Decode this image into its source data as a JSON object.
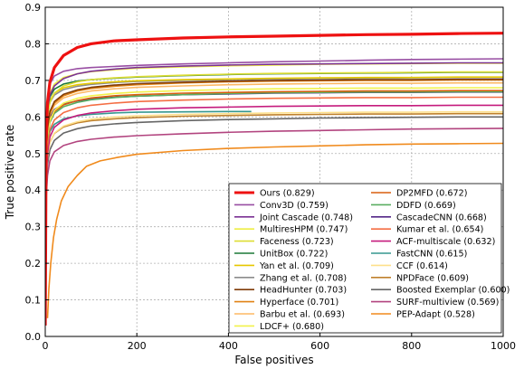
{
  "chart_data": {
    "type": "line",
    "title": "",
    "xlabel": "False positives",
    "ylabel": "True positive rate",
    "xlim": [
      0,
      1000
    ],
    "ylim": [
      0.0,
      0.9
    ],
    "xticks": [
      0,
      200,
      400,
      600,
      800,
      1000
    ],
    "yticks": [
      0.0,
      0.1,
      0.2,
      0.3,
      0.4,
      0.5,
      0.6,
      0.7,
      0.8,
      0.9
    ],
    "grid": true,
    "legend_position": "bottom-right",
    "series": [
      {
        "name": "Ours (0.829)",
        "color": "#ee1111",
        "width": 3.2,
        "x": [
          0,
          2,
          5,
          10,
          20,
          40,
          70,
          100,
          150,
          200,
          300,
          400,
          500,
          600,
          700,
          800,
          900,
          1000
        ],
        "y": [
          0.03,
          0.53,
          0.64,
          0.695,
          0.735,
          0.768,
          0.79,
          0.8,
          0.808,
          0.811,
          0.816,
          0.819,
          0.821,
          0.823,
          0.825,
          0.826,
          0.828,
          0.829
        ]
      },
      {
        "name": "Conv3D (0.759)",
        "color": "#984ea3",
        "width": 1.6,
        "x": [
          0,
          2,
          5,
          10,
          20,
          40,
          70,
          100,
          150,
          200,
          300,
          400,
          500,
          600,
          700,
          800,
          900,
          1000
        ],
        "y": [
          0.03,
          0.58,
          0.65,
          0.69,
          0.712,
          0.725,
          0.732,
          0.735,
          0.738,
          0.741,
          0.745,
          0.748,
          0.751,
          0.753,
          0.755,
          0.757,
          0.758,
          0.759
        ]
      },
      {
        "name": "Joint Cascade (0.748)",
        "color": "#7b3294",
        "width": 1.6,
        "x": [
          0,
          2,
          5,
          10,
          20,
          40,
          70,
          100,
          150,
          200,
          300,
          400,
          500,
          600,
          700,
          800,
          900,
          1000
        ],
        "y": [
          0.03,
          0.55,
          0.62,
          0.66,
          0.685,
          0.705,
          0.718,
          0.725,
          0.731,
          0.735,
          0.739,
          0.742,
          0.744,
          0.745,
          0.746,
          0.747,
          0.748,
          0.748
        ]
      },
      {
        "name": "MultiresHPM (0.747)",
        "color": "#eeee44",
        "width": 1.6,
        "x": [
          0,
          2,
          5,
          10,
          20,
          40,
          70,
          100,
          150,
          200,
          300,
          400,
          500,
          600,
          700,
          800,
          900,
          1000
        ],
        "y": [
          0.03,
          0.55,
          0.62,
          0.665,
          0.69,
          0.708,
          0.718,
          0.724,
          0.729,
          0.733,
          0.737,
          0.74,
          0.742,
          0.744,
          0.745,
          0.746,
          0.747,
          0.747
        ]
      },
      {
        "name": "Faceness (0.723)",
        "color": "#dddd33",
        "width": 1.6,
        "x": [
          0,
          2,
          5,
          10,
          20,
          40,
          70,
          100,
          150,
          200,
          300,
          400,
          500,
          600,
          700,
          800,
          900,
          1000
        ],
        "y": [
          0.03,
          0.53,
          0.6,
          0.64,
          0.665,
          0.685,
          0.696,
          0.702,
          0.707,
          0.71,
          0.714,
          0.717,
          0.719,
          0.72,
          0.721,
          0.722,
          0.723,
          0.723
        ]
      },
      {
        "name": "UnitBox (0.722)",
        "color": "#1b7837",
        "width": 1.6,
        "x": [
          0,
          2,
          5,
          10,
          20,
          40,
          70,
          100,
          150,
          200,
          300,
          400,
          500,
          600,
          700,
          800,
          900,
          1000
        ],
        "y": [
          0.03,
          0.56,
          0.62,
          0.655,
          0.676,
          0.69,
          0.698,
          0.702,
          0.706,
          0.709,
          0.713,
          0.716,
          0.718,
          0.719,
          0.72,
          0.721,
          0.722,
          0.722
        ]
      },
      {
        "name": "Yan et al. (0.709)",
        "color": "#e6c800",
        "width": 1.6,
        "x": [
          0,
          2,
          5,
          10,
          20,
          40,
          70,
          100,
          150,
          200,
          300,
          400,
          500,
          600,
          700,
          800,
          900,
          1000
        ],
        "y": [
          0.03,
          0.55,
          0.61,
          0.645,
          0.665,
          0.68,
          0.688,
          0.692,
          0.696,
          0.699,
          0.702,
          0.704,
          0.706,
          0.707,
          0.708,
          0.708,
          0.709,
          0.709
        ]
      },
      {
        "name": "Zhang et al. (0.708)",
        "color": "#8c8c8c",
        "width": 1.6,
        "x": [
          0,
          2,
          5,
          10,
          20,
          40,
          70,
          100,
          150,
          200,
          300,
          400,
          500,
          600,
          700,
          800,
          900,
          1000
        ],
        "y": [
          0.03,
          0.54,
          0.6,
          0.64,
          0.66,
          0.675,
          0.684,
          0.689,
          0.694,
          0.697,
          0.7,
          0.702,
          0.704,
          0.705,
          0.706,
          0.707,
          0.708,
          0.708
        ]
      },
      {
        "name": "HeadHunter (0.703)",
        "color": "#7f3b08",
        "width": 1.6,
        "x": [
          0,
          2,
          5,
          10,
          20,
          40,
          70,
          100,
          150,
          200,
          300,
          400,
          500,
          600,
          700,
          800,
          900,
          1000
        ],
        "y": [
          0.03,
          0.5,
          0.57,
          0.615,
          0.642,
          0.662,
          0.674,
          0.681,
          0.687,
          0.691,
          0.695,
          0.698,
          0.7,
          0.701,
          0.702,
          0.702,
          0.703,
          0.703
        ]
      },
      {
        "name": "Hyperface (0.701)",
        "color": "#e08214",
        "width": 1.6,
        "x": [
          0,
          2,
          5,
          10,
          20,
          40,
          70,
          100,
          150,
          200,
          300,
          400,
          500,
          600,
          700,
          800,
          900,
          1000
        ],
        "y": [
          0.03,
          0.5,
          0.57,
          0.61,
          0.638,
          0.658,
          0.671,
          0.678,
          0.684,
          0.688,
          0.693,
          0.696,
          0.698,
          0.699,
          0.7,
          0.7,
          0.701,
          0.701
        ]
      },
      {
        "name": "Barbu et al. (0.693)",
        "color": "#fdb863",
        "width": 1.6,
        "x": [
          0,
          2,
          5,
          10,
          20,
          40,
          70,
          100,
          150,
          200,
          300,
          400,
          500,
          600,
          700,
          800,
          900,
          1000
        ],
        "y": [
          0.03,
          0.5,
          0.56,
          0.605,
          0.632,
          0.652,
          0.664,
          0.671,
          0.677,
          0.681,
          0.685,
          0.688,
          0.69,
          0.691,
          0.692,
          0.692,
          0.693,
          0.693
        ]
      },
      {
        "name": "LDCF+ (0.680)",
        "color": "#f2f24a",
        "width": 1.6,
        "x": [
          0,
          2,
          5,
          10,
          20,
          40,
          70,
          100,
          150,
          200,
          300,
          400,
          500,
          600,
          700,
          800,
          900,
          1000
        ],
        "y": [
          0.03,
          0.48,
          0.55,
          0.59,
          0.618,
          0.638,
          0.651,
          0.658,
          0.664,
          0.668,
          0.672,
          0.675,
          0.677,
          0.678,
          0.679,
          0.679,
          0.68,
          0.68
        ]
      },
      {
        "name": "DP2MFD (0.672)",
        "color": "#d95f0e",
        "width": 1.6,
        "x": [
          0,
          2,
          5,
          10,
          20,
          40,
          70,
          100,
          150,
          200,
          300,
          400,
          500,
          600,
          700,
          800,
          900,
          1000
        ],
        "y": [
          0.03,
          0.48,
          0.55,
          0.59,
          0.615,
          0.633,
          0.645,
          0.652,
          0.658,
          0.661,
          0.665,
          0.667,
          0.669,
          0.67,
          0.671,
          0.671,
          0.672,
          0.672
        ]
      },
      {
        "name": "DDFD (0.669)",
        "color": "#5aae61",
        "width": 1.6,
        "x": [
          0,
          2,
          5,
          10,
          20,
          40,
          70,
          100,
          150,
          200,
          300,
          400,
          500,
          600,
          700,
          800,
          900,
          1000
        ],
        "y": [
          0.03,
          0.47,
          0.54,
          0.585,
          0.61,
          0.628,
          0.64,
          0.647,
          0.653,
          0.657,
          0.661,
          0.664,
          0.666,
          0.667,
          0.668,
          0.668,
          0.669,
          0.669
        ]
      },
      {
        "name": "CascadeCNN (0.668)",
        "color": "#542788",
        "width": 1.6,
        "x": [
          0,
          2,
          5,
          10,
          20,
          40,
          70,
          100,
          150,
          200,
          300,
          400,
          500,
          600,
          700,
          800,
          900,
          1000
        ],
        "y": [
          0.03,
          0.5,
          0.57,
          0.6,
          0.62,
          0.635,
          0.644,
          0.649,
          0.654,
          0.657,
          0.661,
          0.663,
          0.665,
          0.666,
          0.667,
          0.667,
          0.668,
          0.668
        ]
      },
      {
        "name": "Kumar et al. (0.654)",
        "color": "#f46d43",
        "width": 1.6,
        "x": [
          0,
          2,
          5,
          10,
          20,
          40,
          70,
          100,
          150,
          200,
          300,
          400,
          500,
          600,
          700,
          800,
          900,
          1000
        ],
        "y": [
          0.03,
          0.45,
          0.52,
          0.565,
          0.592,
          0.612,
          0.625,
          0.632,
          0.638,
          0.642,
          0.646,
          0.649,
          0.651,
          0.652,
          0.653,
          0.653,
          0.654,
          0.654
        ]
      },
      {
        "name": "ACF-multiscale (0.632)",
        "color": "#c51b7d",
        "width": 1.6,
        "x": [
          0,
          2,
          5,
          10,
          20,
          40,
          70,
          100,
          150,
          200,
          300,
          400,
          500,
          600,
          700,
          800,
          900,
          1000
        ],
        "y": [
          0.03,
          0.42,
          0.5,
          0.545,
          0.572,
          0.592,
          0.604,
          0.611,
          0.617,
          0.621,
          0.625,
          0.627,
          0.629,
          0.63,
          0.631,
          0.631,
          0.632,
          0.632
        ]
      },
      {
        "name": "FastCNN (0.615)",
        "color": "#35978f",
        "width": 1.6,
        "x": [
          0,
          2,
          5,
          10,
          20,
          40,
          70,
          100,
          150,
          200,
          300,
          400,
          450
        ],
        "y": [
          0.03,
          0.44,
          0.52,
          0.56,
          0.58,
          0.595,
          0.603,
          0.607,
          0.611,
          0.613,
          0.614,
          0.615,
          0.615
        ]
      },
      {
        "name": "CCF (0.614)",
        "color": "#fee08b",
        "width": 1.6,
        "x": [
          0,
          2,
          5,
          10,
          20,
          40,
          70,
          100,
          150,
          200,
          300,
          400,
          500,
          600,
          700,
          800,
          900,
          1000
        ],
        "y": [
          0.03,
          0.42,
          0.49,
          0.53,
          0.556,
          0.575,
          0.587,
          0.594,
          0.6,
          0.603,
          0.607,
          0.609,
          0.611,
          0.612,
          0.613,
          0.613,
          0.614,
          0.614
        ]
      },
      {
        "name": "NPDFace (0.609)",
        "color": "#bf812d",
        "width": 1.6,
        "x": [
          0,
          2,
          5,
          10,
          20,
          40,
          70,
          100,
          150,
          200,
          300,
          400,
          500,
          600,
          700,
          800,
          900,
          1000
        ],
        "y": [
          0.03,
          0.42,
          0.49,
          0.53,
          0.555,
          0.573,
          0.584,
          0.59,
          0.595,
          0.598,
          0.602,
          0.604,
          0.606,
          0.607,
          0.608,
          0.608,
          0.609,
          0.609
        ]
      },
      {
        "name": "Boosted Exemplar (0.600)",
        "color": "#666666",
        "width": 1.6,
        "x": [
          0,
          2,
          5,
          10,
          20,
          40,
          70,
          100,
          150,
          200,
          300,
          400,
          500,
          600,
          700,
          800,
          900,
          1000
        ],
        "y": [
          0.03,
          0.4,
          0.47,
          0.51,
          0.536,
          0.556,
          0.568,
          0.575,
          0.581,
          0.585,
          0.59,
          0.593,
          0.595,
          0.597,
          0.598,
          0.599,
          0.6,
          0.6
        ]
      },
      {
        "name": "SURF-multiview (0.569)",
        "color": "#b2447f",
        "width": 1.6,
        "x": [
          0,
          2,
          5,
          10,
          20,
          40,
          70,
          100,
          150,
          200,
          300,
          400,
          500,
          600,
          700,
          800,
          900,
          1000
        ],
        "y": [
          0.03,
          0.38,
          0.44,
          0.48,
          0.505,
          0.522,
          0.533,
          0.539,
          0.545,
          0.549,
          0.554,
          0.558,
          0.561,
          0.563,
          0.565,
          0.567,
          0.568,
          0.569
        ]
      },
      {
        "name": "PEP-Adapt (0.528)",
        "color": "#f08a1c",
        "width": 1.6,
        "x": [
          5,
          8,
          12,
          18,
          25,
          35,
          50,
          70,
          90,
          120,
          160,
          200,
          300,
          400,
          500,
          600,
          700,
          800,
          900,
          1000
        ],
        "y": [
          0.05,
          0.13,
          0.2,
          0.27,
          0.32,
          0.37,
          0.41,
          0.44,
          0.465,
          0.48,
          0.49,
          0.498,
          0.508,
          0.514,
          0.518,
          0.521,
          0.524,
          0.526,
          0.527,
          0.528
        ]
      }
    ]
  }
}
